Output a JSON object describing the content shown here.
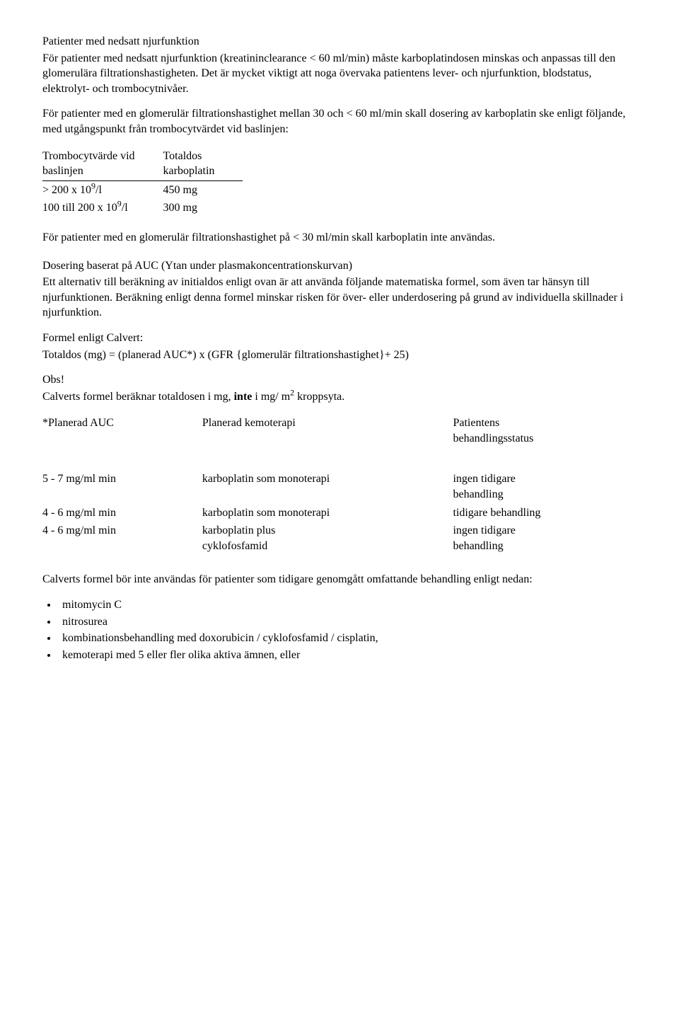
{
  "s1": {
    "h": "Patienter med nedsatt njurfunktion",
    "p1": "För patienter med nedsatt njurfunktion (kreatininclearance < 60 ml/min) måste karboplatindosen minskas och anpassas till den glomerulära filtrationshastigheten. Det är mycket viktigt att noga övervaka patientens lever- och njurfunktion, blodstatus, elektrolyt- och trombocytnivåer.",
    "p2": "För patienter med en glomerulär filtrationshastighet mellan 30 och < 60 ml/min skall dosering av karboplatin ske enligt följande, med utgångspunkt från trombocytvärdet vid baslinjen:"
  },
  "t1": {
    "col1_a": "Trombocytvärde vid",
    "col1_b": "baslinjen",
    "col2_a": "Totaldos",
    "col2_b": "karboplatin",
    "r1c1_pre": "> 200 x 10",
    "r1c1_sup": "9",
    "r1c1_post": "/l",
    "r1c2": "450 mg",
    "r2c1_pre": "100 till 200 x 10",
    "r2c1_sup": "9",
    "r2c1_post": "/l",
    "r2c2": "300 mg"
  },
  "s2": {
    "p1": "För patienter med en glomerulär filtrationshastighet på < 30 ml/min skall karboplatin inte användas."
  },
  "s3": {
    "h": "Dosering baserat på AUC (Ytan under plasmakoncentrationskurvan)",
    "p1": "Ett alternativ till beräkning av initialdos enligt ovan är att använda följande matematiska formel, som även tar hänsyn till njurfunktionen. Beräkning enligt denna formel minskar risken för över- eller underdosering på grund av individuella skillnader i njurfunktion.",
    "p2a": "Formel enligt Calvert:",
    "p2b": "Totaldos (mg) = (planerad AUC*) x (GFR {glomerulär filtrationshastighet}+ 25)",
    "p3a": "Obs!",
    "p3b_pre": "Calverts formel beräknar totaldosen i mg, ",
    "p3b_strong": "inte",
    "p3b_mid": " i mg/ m",
    "p3b_sup": "2",
    "p3b_post": " kroppsyta."
  },
  "t2": {
    "h1": "*Planerad AUC",
    "h2": "Planerad kemoterapi",
    "h3a": "Patientens",
    "h3b": "behandlingsstatus",
    "r1c1": "5 - 7 mg/ml min",
    "r1c2": "karboplatin som monoterapi",
    "r1c3a": "ingen tidigare",
    "r1c3b": "behandling",
    "r2c1": "4 - 6 mg/ml min",
    "r2c2": "karboplatin som monoterapi",
    "r2c3": "tidigare behandling",
    "r3c1": "4 - 6 mg/ml min",
    "r3c2a": "karboplatin plus",
    "r3c2b": "cyklofosfamid",
    "r3c3a": "ingen tidigare",
    "r3c3b": "behandling"
  },
  "s4": {
    "p1": "Calverts formel bör inte användas för patienter som tidigare genomgått omfattande behandling enligt nedan:",
    "b1": "mitomycin C",
    "b2": "nitrosurea",
    "b3": "kombinationsbehandling med doxorubicin / cyklofosfamid / cisplatin,",
    "b4": "kemoterapi med 5 eller fler olika aktiva ämnen, eller"
  }
}
